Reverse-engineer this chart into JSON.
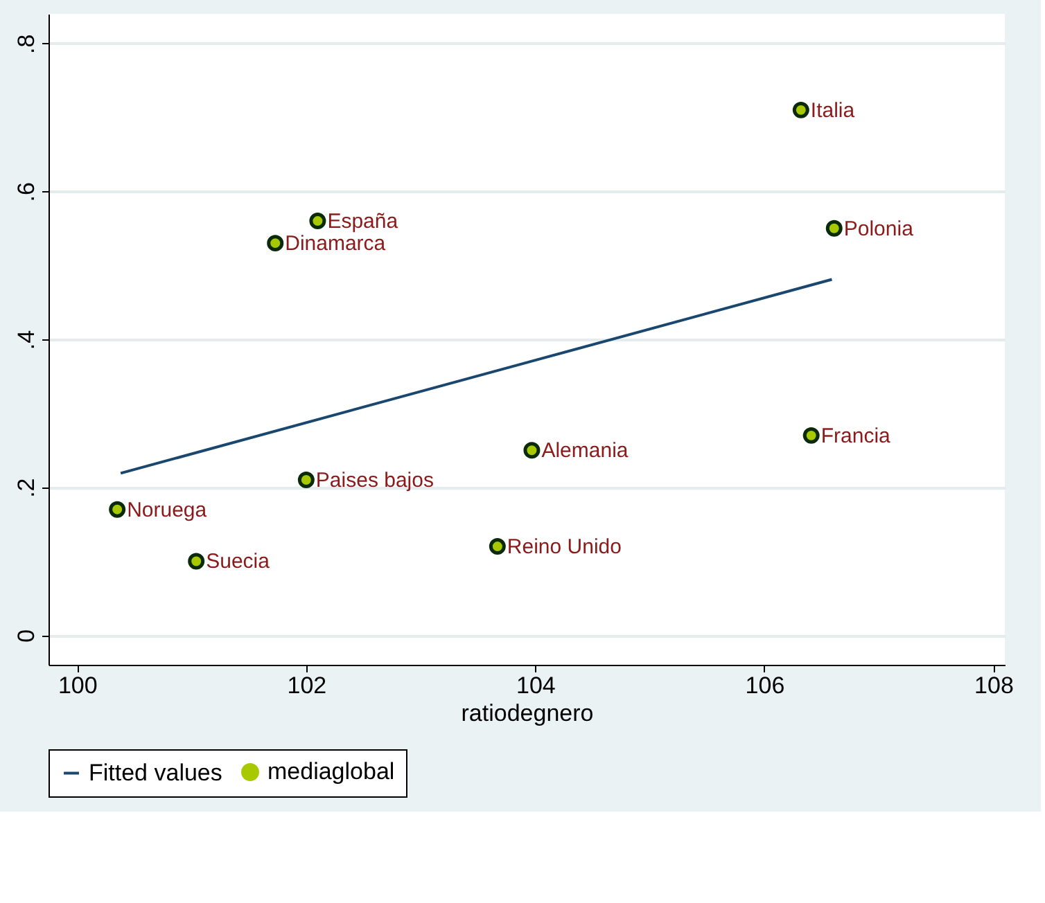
{
  "chart_data": {
    "type": "scatter",
    "xlabel": "ratiodegnero",
    "xlim": [
      99.75,
      108.1
    ],
    "xticks": [
      100,
      102,
      104,
      106,
      108
    ],
    "ylim": [
      -0.04,
      0.84
    ],
    "yticks": [
      {
        "value": 0,
        "label": "0"
      },
      {
        "value": 0.2,
        "label": ".2"
      },
      {
        "value": 0.4,
        "label": ".4"
      },
      {
        "value": 0.6,
        "label": ".6"
      },
      {
        "value": 0.8,
        "label": ".8"
      }
    ],
    "grid": "y",
    "legend": "bottom",
    "series": [
      {
        "name": "Fitted values",
        "type": "line",
        "marker": "none",
        "color": "#1a476f",
        "x": [
          100.38,
          106.59
        ],
        "values": [
          0.219,
          0.481
        ]
      },
      {
        "name": "mediaglobal",
        "marker": "circle",
        "color": "#a8c800",
        "x": [
          106.32,
          106.61,
          106.41,
          102.1,
          101.73,
          102.0,
          103.97,
          103.67,
          100.35,
          101.04
        ],
        "values": [
          0.71,
          0.55,
          0.27,
          0.56,
          0.53,
          0.21,
          0.25,
          0.12,
          0.17,
          0.1
        ]
      }
    ],
    "annotations": [
      {
        "text": "Italia",
        "x": 106.32,
        "y": 0.71
      },
      {
        "text": "Polonia",
        "x": 106.61,
        "y": 0.55
      },
      {
        "text": "Francia",
        "x": 106.41,
        "y": 0.27
      },
      {
        "text": "España",
        "x": 102.1,
        "y": 0.56
      },
      {
        "text": "Dinamarca",
        "x": 101.73,
        "y": 0.53
      },
      {
        "text": "Paises bajos",
        "x": 102.0,
        "y": 0.21
      },
      {
        "text": "Alemania",
        "x": 103.97,
        "y": 0.25
      },
      {
        "text": "Reino Unido",
        "x": 103.67,
        "y": 0.12
      },
      {
        "text": "Noruega",
        "x": 100.35,
        "y": 0.17
      },
      {
        "text": "Suecia",
        "x": 101.04,
        "y": 0.1
      }
    ]
  }
}
